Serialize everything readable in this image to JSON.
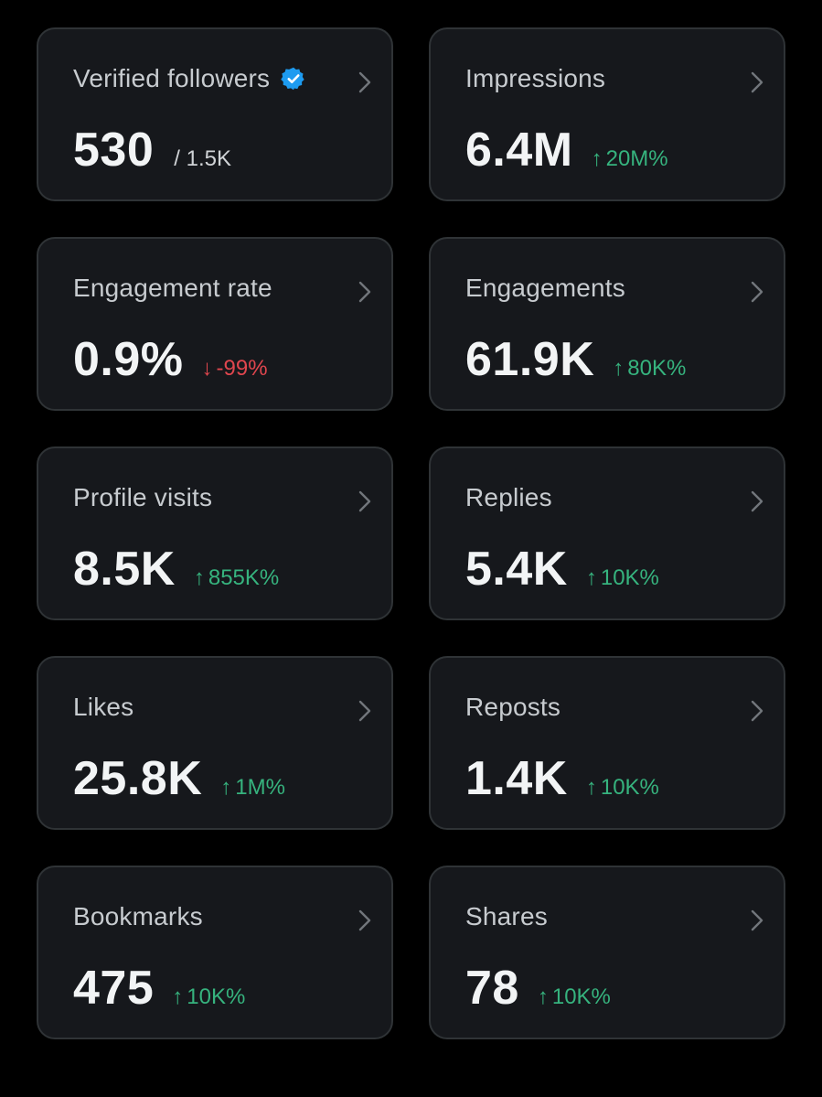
{
  "colors": {
    "background": "#000000",
    "card": "#16181c",
    "card_border": "#2f3336",
    "positive": "#36b37e",
    "negative": "#e0464e",
    "verified_badge": "#1d9bf0"
  },
  "cards": [
    {
      "title": "Verified followers",
      "value": "530",
      "sub": "/ 1.5K",
      "verified_icon": "verified-badge-icon"
    },
    {
      "title": "Impressions",
      "value": "6.4M",
      "change": "20M%",
      "direction": "up"
    },
    {
      "title": "Engagement rate",
      "value": "0.9%",
      "change": "-99%",
      "direction": "down"
    },
    {
      "title": "Engagements",
      "value": "61.9K",
      "change": "80K%",
      "direction": "up"
    },
    {
      "title": "Profile visits",
      "value": "8.5K",
      "change": "855K%",
      "direction": "up"
    },
    {
      "title": "Replies",
      "value": "5.4K",
      "change": "10K%",
      "direction": "up"
    },
    {
      "title": "Likes",
      "value": "25.8K",
      "change": "1M%",
      "direction": "up"
    },
    {
      "title": "Reposts",
      "value": "1.4K",
      "change": "10K%",
      "direction": "up"
    },
    {
      "title": "Bookmarks",
      "value": "475",
      "change": "10K%",
      "direction": "up"
    },
    {
      "title": "Shares",
      "value": "78",
      "change": "10K%",
      "direction": "up"
    }
  ]
}
